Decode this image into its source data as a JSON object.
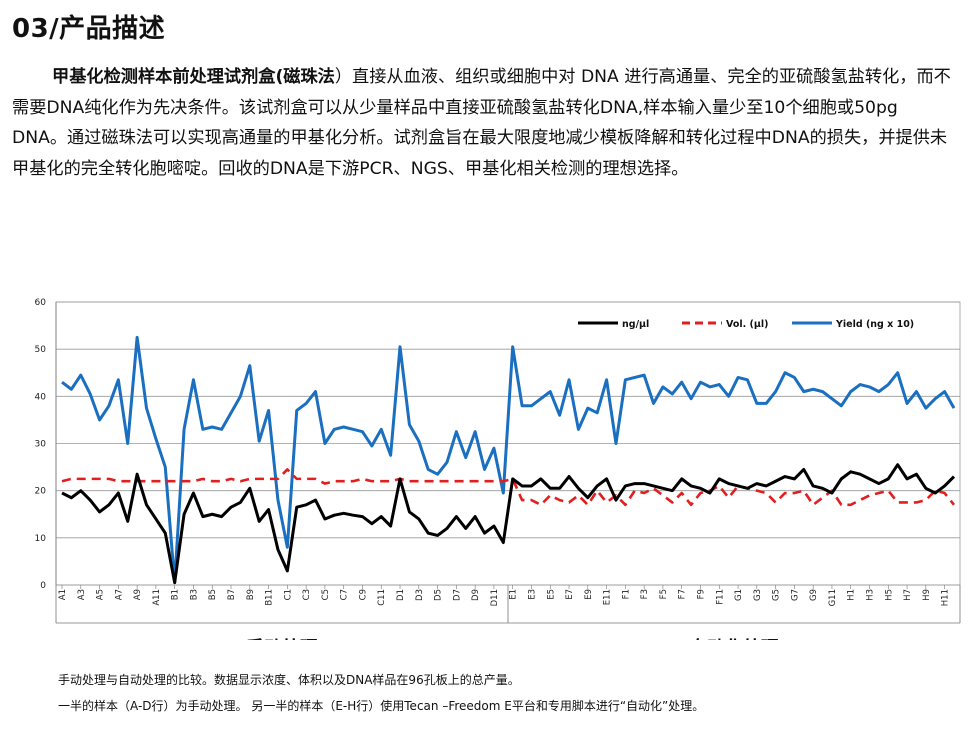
{
  "section": {
    "title": "03/产品描述"
  },
  "intro": {
    "product_name": "甲基化检测样本前处理试剂盒(磁珠法",
    "body": "）直接从血液、组织或细胞中对 DNA 进行高通量、完全的亚硫酸氢盐转化，而不需要DNA纯化作为先决条件。该试剂盒可以从少量样品中直接亚硫酸氢盐转化DNA,样本输入量少至10个细胞或50pg DNA。通过磁珠法可以实现高通量的甲基化分析。试剂盒旨在最大限度地减少模板降解和转化过程中DNA的损失，并提供未甲基化的完全转化胞嘧啶。回收的DNA是下游PCR、NGS、甲基化相关检测的理想选择。"
  },
  "chart_data": {
    "type": "line",
    "ylim": [
      0,
      60
    ],
    "yticks": [
      0,
      10,
      20,
      30,
      40,
      50,
      60
    ],
    "grid": true,
    "legend_position": "top-right",
    "x_tick_labels": [
      "A1",
      "A3",
      "A5",
      "A7",
      "A9",
      "A11",
      "B1",
      "B3",
      "B5",
      "B7",
      "B9",
      "B11",
      "C1",
      "C3",
      "C5",
      "C7",
      "C9",
      "C11",
      "D1",
      "D3",
      "D5",
      "D7",
      "D9",
      "D11",
      "E1",
      "E3",
      "E5",
      "E7",
      "E9",
      "E11",
      "F1",
      "F3",
      "F5",
      "F7",
      "F9",
      "F11",
      "G1",
      "G3",
      "G5",
      "G7",
      "G9",
      "G11",
      "H1",
      "H3",
      "H5",
      "H7",
      "H9",
      "H11"
    ],
    "group_labels": [
      "手动处理",
      "自动化处理"
    ],
    "series": [
      {
        "name": "ng/µl",
        "color": "#000000",
        "style": "solid",
        "values": [
          19.5,
          18.5,
          20,
          18,
          15.5,
          17,
          19.5,
          13.5,
          23.5,
          17,
          14,
          11,
          0.5,
          15,
          19.5,
          14.5,
          15,
          14.5,
          16.5,
          17.5,
          20.5,
          13.5,
          16,
          7.5,
          3,
          16.5,
          17,
          18,
          14,
          14.8,
          15.2,
          14.8,
          14.5,
          13,
          14.5,
          12.5,
          22.5,
          15.5,
          14,
          11,
          10.5,
          12,
          14.5,
          12,
          14.5,
          11,
          12.5,
          9,
          22.5,
          21,
          21,
          22.5,
          20.5,
          20.5,
          23,
          20.5,
          18.5,
          21,
          22.5,
          18,
          21,
          21.5,
          21.5,
          21,
          20.5,
          20,
          22.5,
          21,
          20.5,
          19.5,
          22.5,
          21.5,
          21,
          20.5,
          21.5,
          21,
          22,
          23,
          22.5,
          24.5,
          21,
          20.5,
          19.5,
          22.5,
          24,
          23.5,
          22.5,
          21.5,
          22.5,
          25.5,
          22.5,
          23.5,
          20.5,
          19.5,
          21,
          23
        ]
      },
      {
        "name": "Vol. (µl)",
        "color": "#e31e1e",
        "style": "dashed",
        "values": [
          22,
          22.5,
          22.5,
          22.5,
          22.5,
          22.5,
          22,
          22,
          22,
          22,
          22,
          22,
          22,
          22,
          22,
          22.5,
          22,
          22,
          22.5,
          22,
          22.5,
          22.5,
          22.5,
          22.5,
          24.5,
          22.5,
          22.5,
          22.5,
          21.5,
          22,
          22,
          22,
          22.5,
          22,
          22,
          22,
          22.5,
          22,
          22,
          22,
          22,
          22,
          22,
          22,
          22,
          22,
          22,
          22,
          22.5,
          18,
          18,
          17,
          19,
          18,
          17.5,
          19,
          17,
          20,
          17.5,
          19,
          17,
          20,
          19.5,
          20.5,
          19,
          17.5,
          19.5,
          17,
          19.5,
          20,
          21,
          18.5,
          21,
          20.5,
          20,
          19.5,
          17.5,
          19.5,
          19.5,
          20,
          17,
          18.5,
          20,
          17,
          17,
          18,
          19,
          19.5,
          20,
          17.5,
          17.5,
          17.5,
          18,
          20,
          19.5,
          17
        ]
      },
      {
        "name": "Yield (ng x 10)",
        "color": "#1a6fc0",
        "style": "solid",
        "values": [
          43,
          41.5,
          44.5,
          40.5,
          35,
          38,
          43.5,
          30,
          52.5,
          37.5,
          31,
          25,
          0.5,
          33,
          43.5,
          33,
          33.5,
          33,
          36.5,
          40,
          46.5,
          30.5,
          37,
          18,
          8,
          37,
          38.5,
          41,
          30,
          33,
          33.5,
          33,
          32.5,
          29.5,
          33,
          27.5,
          50.5,
          34,
          30.5,
          24.5,
          23.5,
          26,
          32.5,
          27,
          32.5,
          24.5,
          29,
          19.5,
          50.5,
          38,
          38,
          39.5,
          41,
          36,
          43.5,
          33,
          37.5,
          36.5,
          43.5,
          30,
          43.5,
          44,
          44.5,
          38.5,
          42,
          40.5,
          43,
          39.5,
          43,
          42,
          42.5,
          40,
          44,
          43.5,
          38.5,
          38.5,
          41,
          45,
          44,
          41,
          41.5,
          41,
          39.5,
          38,
          41,
          42.5,
          42,
          41,
          42.5,
          45,
          38.5,
          41,
          37.5,
          39.5,
          41,
          37.5
        ]
      }
    ]
  },
  "captions": {
    "line1": "手动处理与自动处理的比较。数据显示浓度、体积以及DNA样品在96孔板上的总产量。",
    "line2": "一半的样本（A-D行）为手动处理。 另一半的样本（E-H行）使用Tecan –Freedom E平台和专用脚本进行“自动化”处理。"
  }
}
